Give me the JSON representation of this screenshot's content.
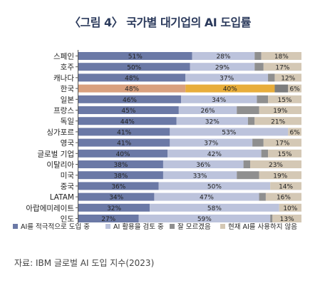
{
  "title": "〈그림 4〉 국가별 대기업의 AI 도입률",
  "source": "자료: IBM 글로벌 AI 도입 지수(2023)",
  "chart_data": {
    "type": "bar",
    "orientation": "horizontal",
    "stacked": true,
    "percent": true,
    "categories": [
      "스페인",
      "호주",
      "캐나다",
      "한국",
      "일본",
      "프랑스",
      "독일",
      "싱가포르",
      "영국",
      "글로벌 기업",
      "이탈리아",
      "미국",
      "중국",
      "LATAM",
      "아랍에미레이트",
      "인도"
    ],
    "highlight_category": "한국",
    "series": [
      {
        "name": "AI를 적극적으로 도입 중",
        "values": [
          51,
          50,
          48,
          48,
          46,
          45,
          44,
          41,
          41,
          40,
          38,
          38,
          36,
          34,
          32,
          27
        ],
        "color": "#6b79a6",
        "highlight_color": "#d9a07e"
      },
      {
        "name": "AI 활용을 검토 중",
        "values": [
          28,
          29,
          37,
          40,
          34,
          26,
          32,
          53,
          37,
          42,
          36,
          33,
          50,
          47,
          58,
          59
        ],
        "color": "#bcc3dc",
        "highlight_color": "#e8ad3b"
      },
      {
        "name": "잘 모르겠음",
        "values": [
          3,
          4,
          3,
          6,
          5,
          10,
          3,
          0,
          5,
          3,
          3,
          10,
          0,
          3,
          0,
          1
        ],
        "color": "#8f8f8f",
        "highlight_color": "#7d7d7d"
      },
      {
        "name": "현재 AI를 사용하지 않음",
        "values": [
          18,
          17,
          12,
          6,
          15,
          19,
          21,
          6,
          17,
          15,
          23,
          19,
          14,
          16,
          10,
          13
        ],
        "color": "#d4c8b5",
        "highlight_color": "#d4c8b5"
      }
    ],
    "data_labels": [
      [
        "51%",
        "28%",
        "",
        "18%"
      ],
      [
        "50%",
        "29%",
        "",
        "17%"
      ],
      [
        "48%",
        "37%",
        "",
        "12%"
      ],
      [
        "48%",
        "40%",
        "",
        "6%"
      ],
      [
        "46%",
        "34%",
        "",
        "15%"
      ],
      [
        "45%",
        "26%",
        "",
        "19%"
      ],
      [
        "44%",
        "32%",
        "",
        "21%"
      ],
      [
        "41%",
        "53%",
        "",
        "6%"
      ],
      [
        "41%",
        "37%",
        "",
        "17%"
      ],
      [
        "40%",
        "42%",
        "",
        "15%"
      ],
      [
        "38%",
        "36%",
        "",
        "23%"
      ],
      [
        "38%",
        "33%",
        "",
        "19%"
      ],
      [
        "36%",
        "50%",
        "",
        "14%"
      ],
      [
        "34%",
        "47%",
        "",
        "16%"
      ],
      [
        "32%",
        "58%",
        "",
        "10%"
      ],
      [
        "27%",
        "59%",
        "",
        "13%"
      ]
    ],
    "xlim": [
      0,
      100
    ],
    "legend_position": "bottom",
    "grid": false
  }
}
